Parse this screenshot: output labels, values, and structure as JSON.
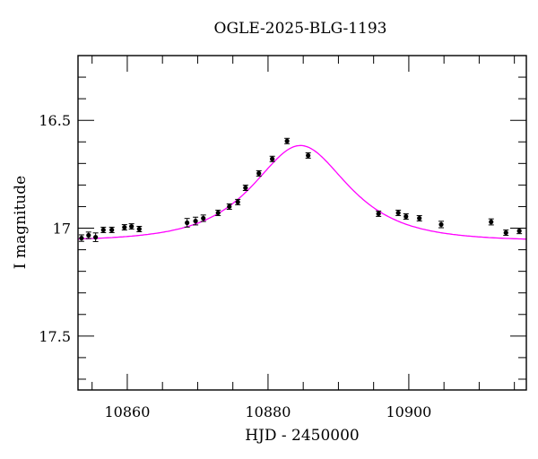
{
  "chart_data": {
    "type": "scatter",
    "title": "OGLE-2025-BLG-1193",
    "xlabel": "HJD - 2450000",
    "ylabel": "I magnitude",
    "xlim": [
      10853.0,
      10916.7
    ],
    "ylim": [
      17.75,
      16.2
    ],
    "y_inverted": true,
    "x_major_ticks": [
      10860,
      10880,
      10900
    ],
    "x_minor_step": 5,
    "y_major_ticks": [
      16.5,
      17,
      17.5
    ],
    "y_tick_labels": [
      "16.5",
      "17",
      "17.5"
    ],
    "y_minor_step": 0.1,
    "grid": false,
    "legend": null,
    "series": [
      {
        "name": "observations",
        "style": "points-with-errorbars",
        "color": "#000000",
        "x": [
          10853.5,
          10854.5,
          10855.5,
          10856.6,
          10857.8,
          10859.6,
          10860.6,
          10861.7,
          10868.5,
          10869.7,
          10870.8,
          10872.9,
          10874.5,
          10875.7,
          10876.8,
          10878.7,
          10880.6,
          10882.7,
          10885.7,
          10895.7,
          10898.5,
          10899.6,
          10901.5,
          10904.6,
          10911.7,
          10913.8,
          10915.7
        ],
        "y": [
          17.046,
          17.033,
          17.042,
          17.008,
          17.008,
          16.996,
          16.992,
          17.004,
          16.975,
          16.967,
          16.954,
          16.929,
          16.9,
          16.879,
          16.813,
          16.746,
          16.679,
          16.596,
          16.663,
          16.933,
          16.929,
          16.946,
          16.954,
          16.983,
          16.971,
          17.021,
          17.013
        ],
        "yerr": [
          0.015,
          0.015,
          0.02,
          0.012,
          0.01,
          0.01,
          0.01,
          0.012,
          0.02,
          0.018,
          0.015,
          0.012,
          0.01,
          0.01,
          0.01,
          0.008,
          0.008,
          0.006,
          0.008,
          0.012,
          0.012,
          0.01,
          0.012,
          0.015,
          0.014,
          0.01,
          0.012
        ]
      },
      {
        "name": "microlensing model",
        "style": "line",
        "color": "#ff00ff",
        "t0": 10884.6,
        "peak_mag": 16.617,
        "baseline_mag": 17.06,
        "tE": 9.0
      }
    ]
  }
}
